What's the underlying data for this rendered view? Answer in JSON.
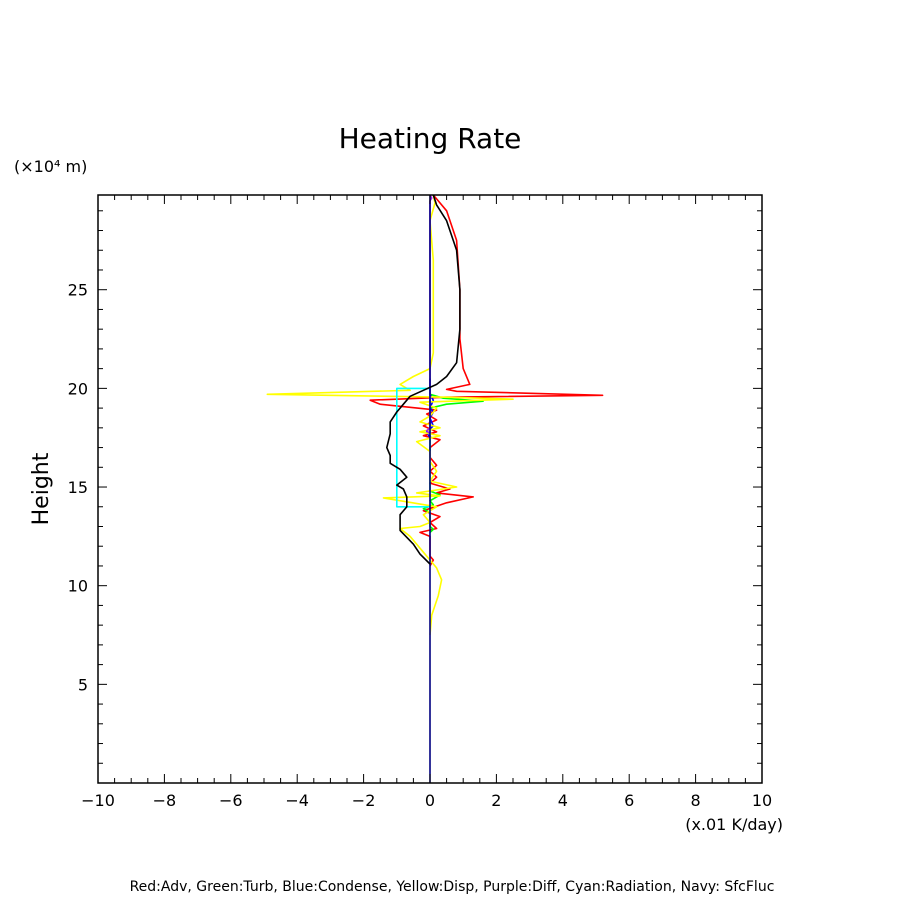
{
  "chart_data": {
    "type": "line",
    "title": "Heating Rate",
    "ylabel": "Height",
    "y_unit_label": "(×10⁴ m)",
    "x_unit_label": "(x.01 K/day)",
    "xlim": [
      -10,
      10
    ],
    "ylim": [
      0,
      29.8
    ],
    "x_ticks": [
      -10,
      -8,
      -6,
      -4,
      -2,
      0,
      2,
      4,
      6,
      8,
      10
    ],
    "x_tick_labels": [
      "−10",
      "−8",
      "−6",
      "−4",
      "−2",
      "0",
      "2",
      "4",
      "6",
      "8",
      "10"
    ],
    "y_ticks": [
      5,
      10,
      15,
      20,
      25
    ],
    "y_tick_labels": [
      "5",
      "10",
      "15",
      "20",
      "25"
    ],
    "grid": false,
    "legend_text": "Red:Adv, Green:Turb, Blue:Condense, Yellow:Disp, Purple:Diff, Cyan:Radiation, Navy: SfcFluc",
    "series": [
      {
        "color": "#ff0000",
        "points": [
          [
            0,
            11.0
          ],
          [
            0.1,
            11.3
          ],
          [
            0,
            11.5
          ],
          [
            0,
            12.5
          ],
          [
            -0.3,
            12.7
          ],
          [
            0.2,
            12.9
          ],
          [
            0,
            13.2
          ],
          [
            0.3,
            13.5
          ],
          [
            -0.2,
            13.8
          ],
          [
            0.5,
            14.2
          ],
          [
            1.3,
            14.5
          ],
          [
            0.2,
            14.7
          ],
          [
            0.6,
            14.9
          ],
          [
            0,
            15.2
          ],
          [
            0.2,
            15.5
          ],
          [
            0,
            15.8
          ],
          [
            0.2,
            16.1
          ],
          [
            0,
            16.5
          ],
          [
            0,
            17.0
          ],
          [
            0.3,
            17.4
          ],
          [
            -0.2,
            17.6
          ],
          [
            0.2,
            17.8
          ],
          [
            -0.2,
            18.1
          ],
          [
            0.2,
            18.4
          ],
          [
            -0.1,
            18.7
          ],
          [
            0.2,
            18.9
          ],
          [
            -1.5,
            19.2
          ],
          [
            -1.8,
            19.4
          ],
          [
            0.5,
            19.55
          ],
          [
            5.2,
            19.65
          ],
          [
            0.8,
            19.85
          ],
          [
            0.5,
            19.95
          ],
          [
            1.2,
            20.2
          ],
          [
            1.0,
            21.0
          ],
          [
            0.9,
            22.5
          ],
          [
            0.9,
            25.0
          ],
          [
            0.8,
            27.5
          ],
          [
            0.5,
            29.0
          ],
          [
            0.2,
            29.6
          ],
          [
            0.1,
            29.8
          ]
        ]
      },
      {
        "color": "#00ff00",
        "points": [
          [
            0,
            12.7
          ],
          [
            0.1,
            12.85
          ],
          [
            0,
            13.0
          ],
          [
            0,
            13.7
          ],
          [
            -0.2,
            13.9
          ],
          [
            0.1,
            14.1
          ],
          [
            0,
            14.3
          ],
          [
            0.3,
            14.6
          ],
          [
            0,
            14.8
          ],
          [
            0,
            19.0
          ],
          [
            0.5,
            19.2
          ],
          [
            1.6,
            19.35
          ],
          [
            0.4,
            19.5
          ],
          [
            0,
            19.7
          ],
          [
            0,
            20.0
          ]
        ]
      },
      {
        "color": "#0000ff",
        "points": [
          [
            0,
            17.5
          ],
          [
            -0.1,
            17.8
          ],
          [
            0.1,
            18.1
          ],
          [
            0,
            18.5
          ],
          [
            0.1,
            18.8
          ],
          [
            0,
            19.0
          ],
          [
            0.1,
            19.4
          ],
          [
            0,
            19.7
          ],
          [
            0,
            20.5
          ]
        ]
      },
      {
        "color": "#ffff00",
        "points": [
          [
            0,
            7.5
          ],
          [
            0.05,
            8.5
          ],
          [
            0.25,
            9.5
          ],
          [
            0.35,
            10.3
          ],
          [
            0.2,
            10.9
          ],
          [
            0,
            11.3
          ],
          [
            -0.3,
            11.9
          ],
          [
            -0.6,
            12.5
          ],
          [
            -0.9,
            12.9
          ],
          [
            -0.3,
            13.0
          ],
          [
            0,
            13.2
          ],
          [
            -0.2,
            13.6
          ],
          [
            0.2,
            14.0
          ],
          [
            -1.4,
            14.45
          ],
          [
            0.3,
            14.55
          ],
          [
            -0.4,
            14.7
          ],
          [
            0.8,
            15.0
          ],
          [
            0,
            15.3
          ],
          [
            0.2,
            15.8
          ],
          [
            0,
            16.3
          ],
          [
            0,
            16.8
          ],
          [
            -0.4,
            17.3
          ],
          [
            0.3,
            17.6
          ],
          [
            -0.3,
            17.8
          ],
          [
            0.3,
            18.0
          ],
          [
            -0.3,
            18.3
          ],
          [
            0,
            18.6
          ],
          [
            0.2,
            19.0
          ],
          [
            -0.3,
            19.3
          ],
          [
            2.5,
            19.45
          ],
          [
            0.5,
            19.55
          ],
          [
            -4.9,
            19.7
          ],
          [
            -0.6,
            19.9
          ],
          [
            -0.9,
            20.2
          ],
          [
            -0.5,
            20.6
          ],
          [
            0,
            21.0
          ],
          [
            0.1,
            21.8
          ],
          [
            0.1,
            24.0
          ],
          [
            0.1,
            26.5
          ],
          [
            0,
            28.5
          ],
          [
            0.15,
            29.4
          ],
          [
            0.1,
            29.8
          ]
        ]
      },
      {
        "color": "#a020f0",
        "points": [
          [
            0,
            17.7
          ],
          [
            -0.1,
            17.85
          ],
          [
            0,
            18.0
          ],
          [
            0,
            29.5
          ],
          [
            0.05,
            29.65
          ],
          [
            0,
            29.8
          ]
        ]
      },
      {
        "color": "#00ffff",
        "points": [
          [
            0,
            14.0
          ],
          [
            -1.0,
            14.0
          ],
          [
            -1.0,
            19.0
          ],
          [
            -1.0,
            20.0
          ],
          [
            0,
            20.0
          ]
        ]
      },
      {
        "color": "#000080",
        "points": [
          [
            0,
            0
          ],
          [
            0,
            29.8
          ]
        ]
      },
      {
        "color": "#000000",
        "points": [
          [
            0,
            11.1
          ],
          [
            -0.3,
            11.6
          ],
          [
            -0.5,
            12.1
          ],
          [
            -0.9,
            12.8
          ],
          [
            -0.9,
            13.1
          ],
          [
            -0.9,
            13.6
          ],
          [
            -0.7,
            14.0
          ],
          [
            -0.7,
            14.5
          ],
          [
            -0.8,
            14.9
          ],
          [
            -1.0,
            15.1
          ],
          [
            -0.7,
            15.5
          ],
          [
            -0.9,
            15.9
          ],
          [
            -1.2,
            16.2
          ],
          [
            -1.2,
            16.6
          ],
          [
            -1.3,
            17.0
          ],
          [
            -1.2,
            17.7
          ],
          [
            -1.2,
            18.3
          ],
          [
            -1.0,
            18.8
          ],
          [
            -0.8,
            19.2
          ],
          [
            -0.6,
            19.6
          ],
          [
            -0.2,
            19.9
          ],
          [
            0.2,
            20.2
          ],
          [
            0.5,
            20.6
          ],
          [
            0.8,
            21.3
          ],
          [
            0.9,
            23.0
          ],
          [
            0.9,
            25.0
          ],
          [
            0.8,
            27.0
          ],
          [
            0.5,
            28.5
          ],
          [
            0.2,
            29.3
          ],
          [
            0.1,
            29.8
          ]
        ]
      }
    ]
  }
}
